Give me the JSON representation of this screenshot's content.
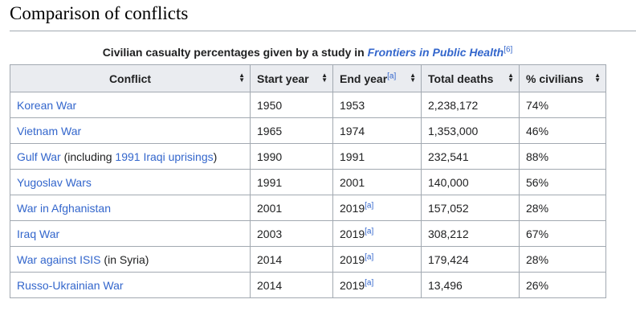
{
  "heading": "Comparison of conflicts",
  "caption": {
    "prefix": "Civilian casualty percentages given by a study in ",
    "source": "Frontiers in Public Health",
    "ref": "[6]"
  },
  "columns": [
    "Conflict",
    "Start year",
    "End year",
    "Total deaths",
    "% civilians"
  ],
  "end_year_ref": "[a]",
  "rows": [
    {
      "conflict": "Korean War",
      "note_pre": "",
      "note_link": "",
      "note_post": "",
      "start": "1950",
      "end": "1953",
      "end_ref": "",
      "deaths": "2,238,172",
      "pct": "74%"
    },
    {
      "conflict": "Vietnam War",
      "note_pre": "",
      "note_link": "",
      "note_post": "",
      "start": "1965",
      "end": "1974",
      "end_ref": "",
      "deaths": "1,353,000",
      "pct": "46%"
    },
    {
      "conflict": "Gulf War",
      "note_pre": " (including ",
      "note_link": "1991 Iraqi uprisings",
      "note_post": ")",
      "start": "1990",
      "end": "1991",
      "end_ref": "",
      "deaths": "232,541",
      "pct": "88%"
    },
    {
      "conflict": "Yugoslav Wars",
      "note_pre": "",
      "note_link": "",
      "note_post": "",
      "start": "1991",
      "end": "2001",
      "end_ref": "",
      "deaths": "140,000",
      "pct": "56%"
    },
    {
      "conflict": "War in Afghanistan",
      "note_pre": "",
      "note_link": "",
      "note_post": "",
      "start": "2001",
      "end": "2019",
      "end_ref": "[a]",
      "deaths": "157,052",
      "pct": "28%"
    },
    {
      "conflict": "Iraq War",
      "note_pre": "",
      "note_link": "",
      "note_post": "",
      "start": "2003",
      "end": "2019",
      "end_ref": "[a]",
      "deaths": "308,212",
      "pct": "67%"
    },
    {
      "conflict": "War against ISIS",
      "note_pre": " (in Syria)",
      "note_link": "",
      "note_post": "",
      "start": "2014",
      "end": "2019",
      "end_ref": "[a]",
      "deaths": "179,424",
      "pct": "28%"
    },
    {
      "conflict": "Russo-Ukrainian War",
      "note_pre": "",
      "note_link": "",
      "note_post": "",
      "start": "2014",
      "end": "2019",
      "end_ref": "[a]",
      "deaths": "13,496",
      "pct": "26%"
    }
  ]
}
